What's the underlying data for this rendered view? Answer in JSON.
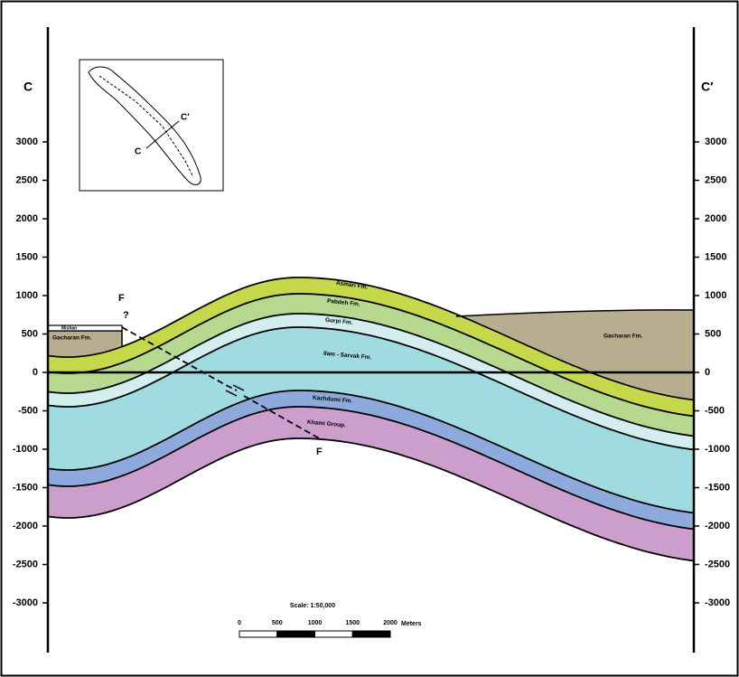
{
  "section": {
    "left_label": "C",
    "right_label": "C′"
  },
  "elevation_ticks": [
    3000,
    2500,
    2000,
    1500,
    1000,
    500,
    0,
    -500,
    -1000,
    -1500,
    -2000,
    -2500,
    -3000
  ],
  "formations": {
    "mishan": "Mishan",
    "gacharan_left": "Gacharan Fm.",
    "gacharan_right": "Gacharan Fm.",
    "asmari": "Asmari Fm.",
    "pabdeh": "Pabdeh Fm.",
    "gurpi": "Gurpi Fm.",
    "ilam_sarvak": "Ilam - Sarvak Fm.",
    "kazhdumi": "Kazhdumi Fm.",
    "khami": "Khami Group."
  },
  "fault": {
    "top_label": "F",
    "query": "?",
    "bottom_label": "F"
  },
  "inset": {
    "label_a": "C",
    "label_b": "C′"
  },
  "scale": {
    "title": "Scale: 1:50,000",
    "ticks": [
      0,
      500,
      1000,
      1500,
      2000
    ],
    "unit": "Meters"
  }
}
